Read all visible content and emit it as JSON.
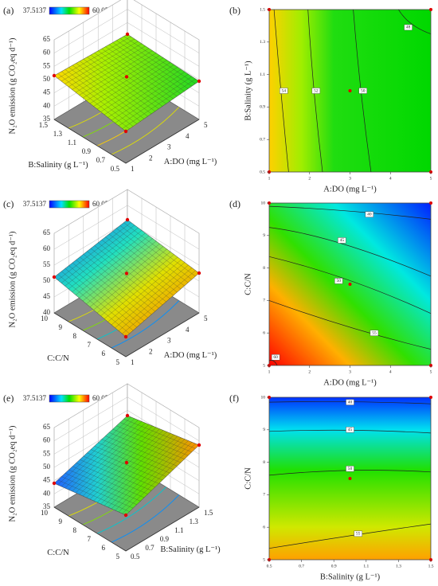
{
  "panels": [
    {
      "label": "(a)",
      "kind": "surface",
      "legend": {
        "min": "37.5137",
        "max": "60.056"
      },
      "z_label": "N₂O emission (g CO₂eq d⁻¹)",
      "z_ticks": [
        "35",
        "40",
        "45",
        "50",
        "55",
        "60",
        "65"
      ],
      "x_label": "A:DO (mg L⁻¹)",
      "x_ticks": [
        "1",
        "2",
        "3",
        "4",
        "5"
      ],
      "y_label": "B:Salinity (g L⁻¹)",
      "y_ticks": [
        "0.5",
        "0.7",
        "0.9",
        "1.1",
        "1.3",
        "1.5"
      ]
    },
    {
      "label": "(b)",
      "kind": "contour",
      "x_label": "A:DO (mg L⁻¹)",
      "x_ticks": [
        "1",
        "2",
        "3",
        "4",
        "5"
      ],
      "y_label": "B:Salinity (g L⁻¹)",
      "y_ticks": [
        "0.5",
        "0.7",
        "0.9",
        "1.1",
        "1.3",
        "1.5"
      ],
      "contour_labels": [
        "54",
        "52",
        "50",
        "48"
      ]
    },
    {
      "label": "(c)",
      "kind": "surface",
      "legend": {
        "min": "37.5137",
        "max": "60.056"
      },
      "z_label": "N₂O emission (g CO₂eq d⁻¹)",
      "z_ticks": [
        "40",
        "45",
        "50",
        "55",
        "60",
        "65"
      ],
      "x_label": "A:DO (mg L⁻¹)",
      "x_ticks": [
        "1",
        "2",
        "3",
        "4",
        "5"
      ],
      "y_label": "C:C/N",
      "y_ticks": [
        "5",
        "6",
        "7",
        "8",
        "9",
        "10"
      ]
    },
    {
      "label": "(d)",
      "kind": "contour",
      "x_label": "A:DO (mg L⁻¹)",
      "x_ticks": [
        "1",
        "2",
        "3",
        "4",
        "5"
      ],
      "y_label": "C:C/N",
      "y_ticks": [
        "5",
        "6",
        "7",
        "8",
        "9",
        "10"
      ],
      "contour_labels": [
        "40",
        "45",
        "50",
        "55",
        "60"
      ]
    },
    {
      "label": "(e)",
      "kind": "surface",
      "legend": {
        "min": "37.5137",
        "max": "60.056"
      },
      "z_label": "N₂O emission (g CO₂eq d⁻¹)",
      "z_ticks": [
        "35",
        "40",
        "45",
        "50",
        "55",
        "60",
        "65"
      ],
      "x_label": "B:Salinity (g L⁻¹)",
      "x_ticks": [
        "0.5",
        "0.7",
        "0.9",
        "1.1",
        "1.3",
        "1.5"
      ],
      "y_label": "C:C/N",
      "y_ticks": [
        "5",
        "6",
        "7",
        "8",
        "9",
        "10"
      ]
    },
    {
      "label": "(f)",
      "kind": "contour",
      "x_label": "B:Salinity (g L⁻¹)",
      "x_ticks": [
        "0.5",
        "0.7",
        "0.9",
        "1.1",
        "1.3",
        "1.5"
      ],
      "y_label": "C:C/N",
      "y_ticks": [
        "5",
        "6",
        "7",
        "8",
        "9",
        "10"
      ],
      "contour_labels": [
        "40",
        "45",
        "50",
        "55"
      ]
    }
  ]
}
